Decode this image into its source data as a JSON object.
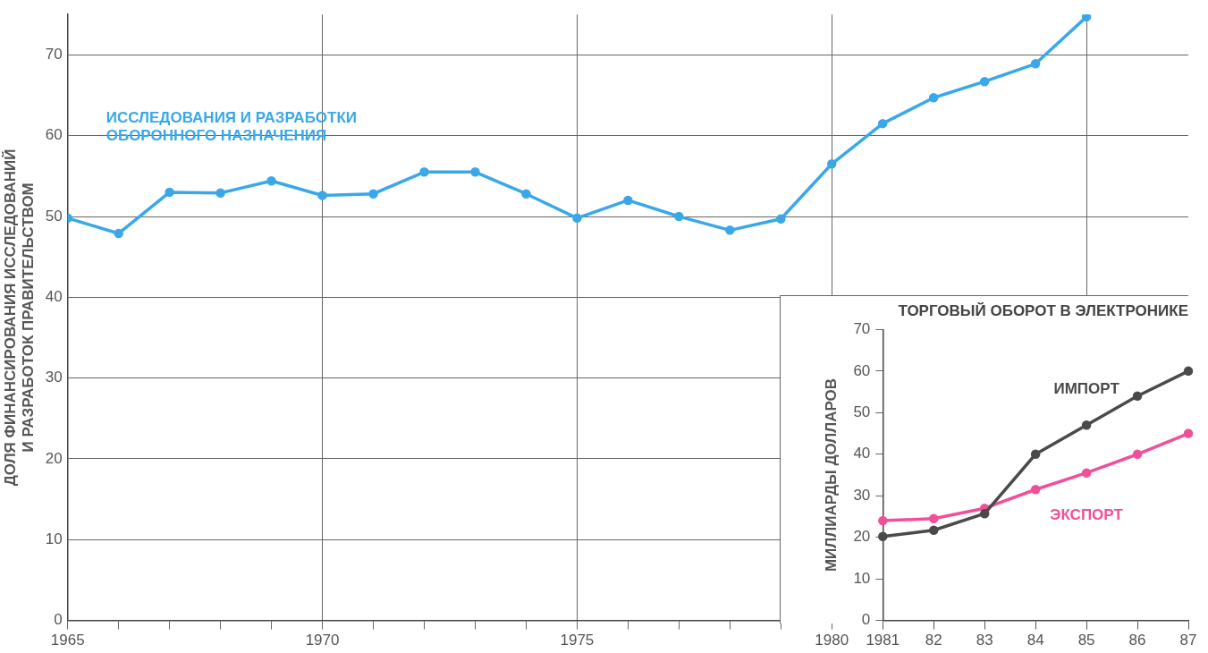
{
  "chart_data": [
    {
      "type": "line",
      "ylabel": "ДОЛЯ ФИНАНСИРОВАНИЯ ИССЛЕДОВАНИЙ\nИ РАЗРАБОТОК ПРАВИТЕЛЬСТВОМ",
      "x": [
        1965,
        1966,
        1967,
        1968,
        1969,
        1970,
        1971,
        1972,
        1973,
        1974,
        1975,
        1976,
        1977,
        1978,
        1979,
        1980,
        1981,
        1982,
        1983,
        1984,
        1985
      ],
      "series": [
        {
          "name": "ИССЛЕДОВАНИЯ И РАЗРАБОТКИ\nОБОРОННОГО НАЗНАЧЕНИЯ",
          "color": "#3aa8e8",
          "values": [
            49.8,
            47.9,
            53,
            52.9,
            54.4,
            52.6,
            52.8,
            55.5,
            55.5,
            52.8,
            49.8,
            52,
            50,
            48.3,
            49.7,
            56.5,
            61.5,
            64.7,
            66.7,
            68.9,
            74.7
          ]
        }
      ],
      "xlim": [
        1965,
        1987
      ],
      "xticks": [
        1965,
        {
          "value": 1966,
          "label": null
        },
        {
          "value": 1967,
          "label": null
        },
        {
          "value": 1968,
          "label": null
        },
        {
          "value": 1969,
          "label": null
        },
        1970,
        {
          "value": 1971,
          "label": null
        },
        {
          "value": 1972,
          "label": null
        },
        {
          "value": 1973,
          "label": null
        },
        {
          "value": 1974,
          "label": null
        },
        1975,
        {
          "value": 1976,
          "label": null
        },
        {
          "value": 1977,
          "label": null
        },
        {
          "value": 1978,
          "label": null
        },
        {
          "value": 1979,
          "label": null
        },
        1980,
        {
          "value": 1985,
          "label": null
        }
      ],
      "ylim": [
        0,
        75
      ],
      "yticks": [
        0,
        10,
        20,
        30,
        40,
        50,
        60,
        70
      ],
      "grid": true,
      "marker": "circle"
    },
    {
      "type": "line",
      "title": "ТОРГОВЫЙ ОБОРОТ В ЭЛЕКТРОНИКЕ",
      "ylabel": "МИЛЛИАРДЫ ДОЛЛАРОВ",
      "categories": [
        "1981",
        "82",
        "83",
        "84",
        "85",
        "86",
        "87"
      ],
      "series": [
        {
          "name": "ИМПОРТ",
          "color": "#4a4a4a",
          "values": [
            20.2,
            21.7,
            25.7,
            40,
            47,
            54,
            60
          ]
        },
        {
          "name": "ЭКСПОРТ",
          "color": "#f0509a",
          "values": [
            24,
            24.5,
            27,
            31.5,
            35.5,
            40,
            45
          ]
        }
      ],
      "ylim": [
        0,
        70
      ],
      "yticks": [
        0,
        10,
        20,
        30,
        40,
        50,
        60,
        70
      ],
      "marker": "circle"
    }
  ]
}
